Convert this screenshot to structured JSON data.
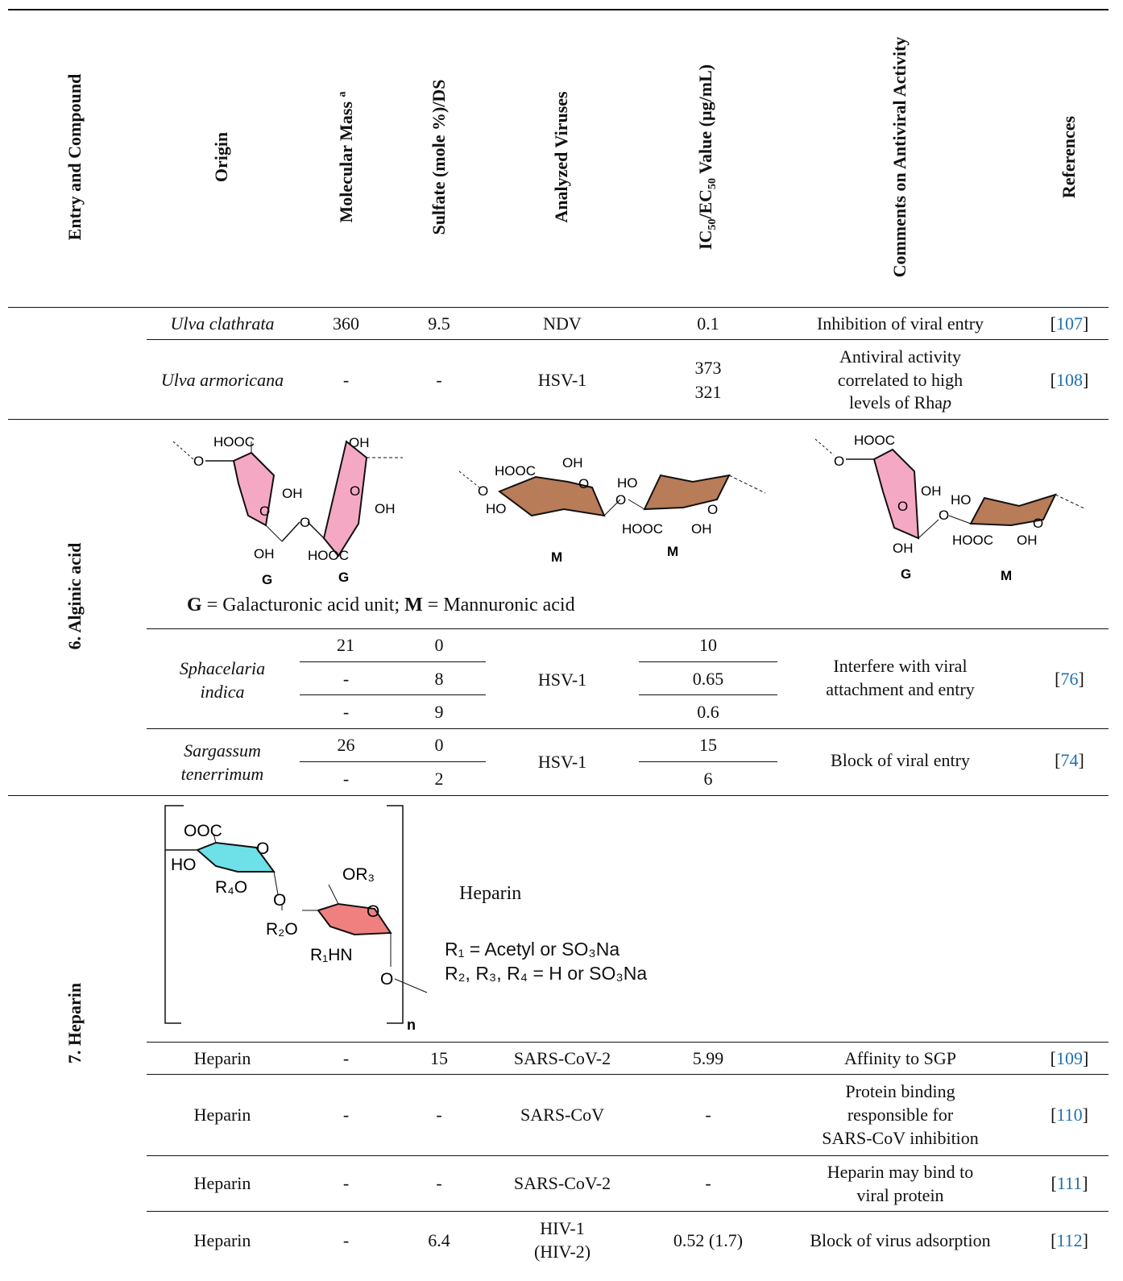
{
  "headers": {
    "entry": "Entry and Compound",
    "origin": "Origin",
    "mass": "Molecular Mass",
    "mass_sup": "a",
    "sulfate": "Sulfate (mole %)/DS",
    "viruses": "Analyzed Viruses",
    "ic_pre": "IC",
    "ic_sub1": "50",
    "ic_mid": "/EC",
    "ic_sub2": "50",
    "ic_post": " Value (µg/mL)",
    "comments": "Comments on Antiviral Activity",
    "refs": "References"
  },
  "sections": {
    "alginic": "6. Alginic acid",
    "heparin": "7. Heparin"
  },
  "rows": {
    "r1": {
      "origin": "Ulva clathrata",
      "mass": "360",
      "sulfate": "9.5",
      "virus": "NDV",
      "ic": "0.1",
      "comment": "Inhibition of viral entry",
      "ref_open": "[",
      "ref": "107",
      "ref_close": "]"
    },
    "r2": {
      "origin": "Ulva armoricana",
      "mass": "-",
      "sulfate": "-",
      "virus": "HSV-1",
      "ic1": "373",
      "ic2": "321",
      "comment1": "Antiviral activity",
      "comment2": "correlated to high",
      "comment3_pre": "levels of Rha",
      "comment3_it": "p",
      "ref_open": "[",
      "ref": "108",
      "ref_close": "]"
    },
    "r3": {
      "origin1": "Sphacelaria",
      "origin2": "indica",
      "mass1": "21",
      "mass2": "-",
      "mass3": "-",
      "sulf1": "0",
      "sulf2": "8",
      "sulf3": "9",
      "virus": "HSV-1",
      "ic1": "10",
      "ic2": "0.65",
      "ic3": "0.6",
      "comment1": "Interfere with viral",
      "comment2": "attachment and entry",
      "ref_open": "[",
      "ref": "76",
      "ref_close": "]"
    },
    "r4": {
      "origin1": "Sargassum",
      "origin2": "tenerrimum",
      "mass1": "26",
      "mass2": "-",
      "sulf1": "0",
      "sulf2": "2",
      "virus": "HSV-1",
      "ic1": "15",
      "ic2": "6",
      "comment": "Block of viral entry",
      "ref_open": "[",
      "ref": "74",
      "ref_close": "]"
    },
    "r5": {
      "origin": "Heparin",
      "mass": "-",
      "sulfate": "15",
      "virus": "SARS-CoV-2",
      "ic": "5.99",
      "comment": "Affinity to SGP",
      "ref_open": "[",
      "ref": "109",
      "ref_close": "]"
    },
    "r6": {
      "origin": "Heparin",
      "mass": "-",
      "sulfate": "-",
      "virus": "SARS-CoV",
      "ic": "-",
      "comment1": "Protein binding",
      "comment2": "responsible for",
      "comment3": "SARS-CoV inhibition",
      "ref_open": "[",
      "ref": "110",
      "ref_close": "]"
    },
    "r7": {
      "origin": "Heparin",
      "mass": "-",
      "sulfate": "-",
      "virus": "SARS-CoV-2",
      "ic": "-",
      "comment1": "Heparin may bind to",
      "comment2": "viral protein",
      "ref_open": "[",
      "ref": "111",
      "ref_close": "]"
    },
    "r8": {
      "origin": "Heparin",
      "mass": "-",
      "sulfate": "6.4",
      "virus1": "HIV-1",
      "virus2": "(HIV-2)",
      "ic": "0.52 (1.7)",
      "comment": "Block of virus adsorption",
      "ref_open": "[",
      "ref": "112",
      "ref_close": "]"
    }
  },
  "alginic_struct": {
    "g_label": "G",
    "m_label": "M",
    "hooc": "HOOC",
    "oh": "OH",
    "ho": "HO",
    "o": "O",
    "legend_g": "G",
    "legend_g_text": " = Galacturonic acid unit; ",
    "legend_m": "M",
    "legend_m_text": " = Mannuronic acid",
    "colors": {
      "pink": "#f5a8c4",
      "brown": "#b87c58",
      "cyan": "#6ee0e8",
      "salmon": "#f08080"
    }
  },
  "heparin_struct": {
    "title": "Heparin",
    "ooc": "OOC",
    "ho": "HO",
    "o": "O",
    "r4o": "R₄O",
    "or3": "OR₃",
    "r2o": "R₂O",
    "r1hn": "R₁HN",
    "n": "n",
    "def1": "R₁ = Acetyl or SO₃Na",
    "def2": "R₂, R₃, R₄ = H or SO₃Na"
  }
}
